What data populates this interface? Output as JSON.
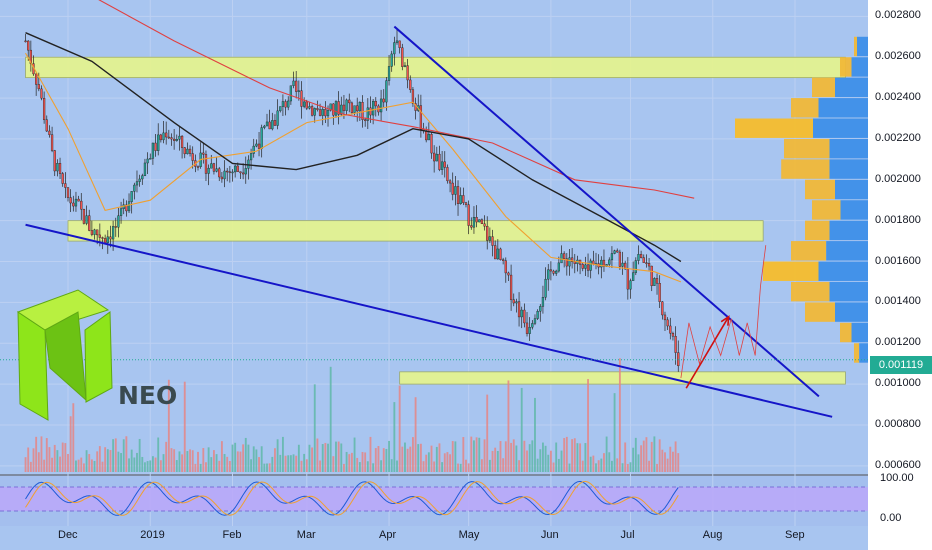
{
  "logo": {
    "text": "NEO"
  },
  "last_price": "0.001119",
  "osc_axis": [
    "100.00",
    "0.00"
  ],
  "colors": {
    "background": "#a8c5f0",
    "zone_fill": "#e7f58c",
    "trendline": "#1515c8",
    "candle_up": "#26a69a",
    "candle_down": "#ef5350",
    "ma_fast": "#f0a030",
    "ma_mid": "#e04040",
    "ma_slow": "#222222",
    "oscillator_band": "#b9a8f8",
    "logo_green": "#8ee51a"
  },
  "chart_data": {
    "type": "candlestick",
    "symbol": "NEO",
    "y_axis": {
      "ticks": [
        "0.002800",
        "0.002600",
        "0.002400",
        "0.002200",
        "0.002000",
        "0.001800",
        "0.001600",
        "0.001400",
        "0.001200",
        "0.001000",
        "0.000800",
        "0.000600"
      ],
      "range": [
        0.0006,
        0.0028
      ]
    },
    "x_axis": {
      "ticks": [
        "Dec",
        "2019",
        "Feb",
        "Mar",
        "Apr",
        "May",
        "Jun",
        "Jul",
        "Aug",
        "Sep"
      ]
    },
    "close_path": [
      [
        "2018-11-15",
        0.00268
      ],
      [
        "2018-11-20",
        0.00245
      ],
      [
        "2018-11-25",
        0.00212
      ],
      [
        "2018-11-30",
        0.00192
      ],
      [
        "2018-12-05",
        0.00186
      ],
      [
        "2018-12-10",
        0.00175
      ],
      [
        "2018-12-15",
        0.00172
      ],
      [
        "2018-12-20",
        0.00178
      ],
      [
        "2018-12-25",
        0.00196
      ],
      [
        "2019-01-01",
        0.00213
      ],
      [
        "2019-01-07",
        0.00224
      ],
      [
        "2019-01-14",
        0.00215
      ],
      [
        "2019-01-21",
        0.00208
      ],
      [
        "2019-01-28",
        0.00204
      ],
      [
        "2019-02-04",
        0.00205
      ],
      [
        "2019-02-10",
        0.00218
      ],
      [
        "2019-02-18",
        0.00232
      ],
      [
        "2019-02-24",
        0.00244
      ],
      [
        "2019-03-02",
        0.00236
      ],
      [
        "2019-03-09",
        0.00232
      ],
      [
        "2019-03-16",
        0.00238
      ],
      [
        "2019-03-23",
        0.00232
      ],
      [
        "2019-03-30",
        0.00238
      ],
      [
        "2019-04-03",
        0.00268
      ],
      [
        "2019-04-07",
        0.00256
      ],
      [
        "2019-04-12",
        0.00232
      ],
      [
        "2019-04-18",
        0.00212
      ],
      [
        "2019-04-25",
        0.00195
      ],
      [
        "2019-05-01",
        0.00182
      ],
      [
        "2019-05-07",
        0.00175
      ],
      [
        "2019-05-13",
        0.0016
      ],
      [
        "2019-05-18",
        0.00142
      ],
      [
        "2019-05-23",
        0.00128
      ],
      [
        "2019-05-28",
        0.00142
      ],
      [
        "2019-06-02",
        0.00158
      ],
      [
        "2019-06-08",
        0.00162
      ],
      [
        "2019-06-14",
        0.00154
      ],
      [
        "2019-06-20",
        0.0016
      ],
      [
        "2019-06-26",
        0.00164
      ],
      [
        "2019-06-30",
        0.0015
      ],
      [
        "2019-07-04",
        0.00164
      ],
      [
        "2019-07-08",
        0.00156
      ],
      [
        "2019-07-12",
        0.00142
      ],
      [
        "2019-07-16",
        0.00125
      ],
      [
        "2019-07-19",
        0.00112
      ]
    ],
    "moving_averages": [
      {
        "name": "short",
        "color": "#f0a030",
        "points": [
          [
            "2018-11-15",
            0.00262
          ],
          [
            "2018-12-01",
            0.00225
          ],
          [
            "2018-12-15",
            0.00185
          ],
          [
            "2019-01-01",
            0.0019
          ],
          [
            "2019-01-20",
            0.0021
          ],
          [
            "2019-02-10",
            0.00214
          ],
          [
            "2019-03-01",
            0.00228
          ],
          [
            "2019-03-25",
            0.00234
          ],
          [
            "2019-04-10",
            0.00238
          ],
          [
            "2019-04-25",
            0.00215
          ],
          [
            "2019-05-15",
            0.00182
          ],
          [
            "2019-06-01",
            0.00162
          ],
          [
            "2019-06-20",
            0.00158
          ],
          [
            "2019-07-10",
            0.00155
          ],
          [
            "2019-07-20",
            0.0015
          ]
        ]
      },
      {
        "name": "mid",
        "color": "#e04040",
        "points": [
          [
            "2018-12-10",
            0.0029
          ],
          [
            "2019-01-10",
            0.00268
          ],
          [
            "2019-02-15",
            0.00245
          ],
          [
            "2019-03-15",
            0.00232
          ],
          [
            "2019-04-10",
            0.00226
          ],
          [
            "2019-05-10",
            0.00218
          ],
          [
            "2019-06-10",
            0.002
          ],
          [
            "2019-07-10",
            0.00195
          ],
          [
            "2019-07-25",
            0.00191
          ]
        ]
      },
      {
        "name": "long",
        "color": "#222222",
        "points": [
          [
            "2018-11-15",
            0.00272
          ],
          [
            "2018-12-10",
            0.00258
          ],
          [
            "2019-01-10",
            0.00228
          ],
          [
            "2019-02-01",
            0.00208
          ],
          [
            "2019-02-25",
            0.00205
          ],
          [
            "2019-03-20",
            0.00212
          ],
          [
            "2019-04-10",
            0.00225
          ],
          [
            "2019-05-01",
            0.0022
          ],
          [
            "2019-05-25",
            0.002
          ],
          [
            "2019-06-20",
            0.00182
          ],
          [
            "2019-07-10",
            0.00168
          ],
          [
            "2019-07-20",
            0.0016
          ]
        ]
      }
    ],
    "zones": [
      {
        "low": 0.0025,
        "high": 0.0026,
        "start": "2018-11-15",
        "end": "2019-09-20"
      },
      {
        "low": 0.0017,
        "high": 0.0018,
        "start": "2018-12-01",
        "end": "2019-08-20"
      },
      {
        "low": 0.001,
        "high": 0.00106,
        "start": "2019-04-05",
        "end": "2019-09-20"
      }
    ],
    "trendlines": [
      {
        "name": "upper",
        "from": [
          "2019-04-03",
          0.00275
        ],
        "to": [
          "2019-09-10",
          0.00094
        ]
      },
      {
        "name": "lower",
        "from": [
          "2018-11-15",
          0.00178
        ],
        "to": [
          "2019-09-15",
          0.00084
        ]
      }
    ],
    "projection": [
      [
        "2019-07-22",
        0.00098
      ],
      [
        "2019-08-07",
        0.00133
      ]
    ],
    "volume_profile": [
      {
        "price": 0.00265,
        "a": 0.1,
        "b": 0.1
      },
      {
        "price": 0.00255,
        "a": 0.2,
        "b": 0.15
      },
      {
        "price": 0.00245,
        "a": 0.4,
        "b": 0.3
      },
      {
        "price": 0.00235,
        "a": 0.55,
        "b": 0.45
      },
      {
        "price": 0.00225,
        "a": 0.95,
        "b": 0.5
      },
      {
        "price": 0.00215,
        "a": 0.6,
        "b": 0.35
      },
      {
        "price": 0.00205,
        "a": 0.62,
        "b": 0.35
      },
      {
        "price": 0.00195,
        "a": 0.45,
        "b": 0.3
      },
      {
        "price": 0.00185,
        "a": 0.4,
        "b": 0.25
      },
      {
        "price": 0.00175,
        "a": 0.45,
        "b": 0.35
      },
      {
        "price": 0.00165,
        "a": 0.55,
        "b": 0.38
      },
      {
        "price": 0.00155,
        "a": 0.75,
        "b": 0.45
      },
      {
        "price": 0.00145,
        "a": 0.55,
        "b": 0.35
      },
      {
        "price": 0.00135,
        "a": 0.45,
        "b": 0.3
      },
      {
        "price": 0.00125,
        "a": 0.2,
        "b": 0.15
      },
      {
        "price": 0.00115,
        "a": 0.1,
        "b": 0.08
      }
    ]
  }
}
